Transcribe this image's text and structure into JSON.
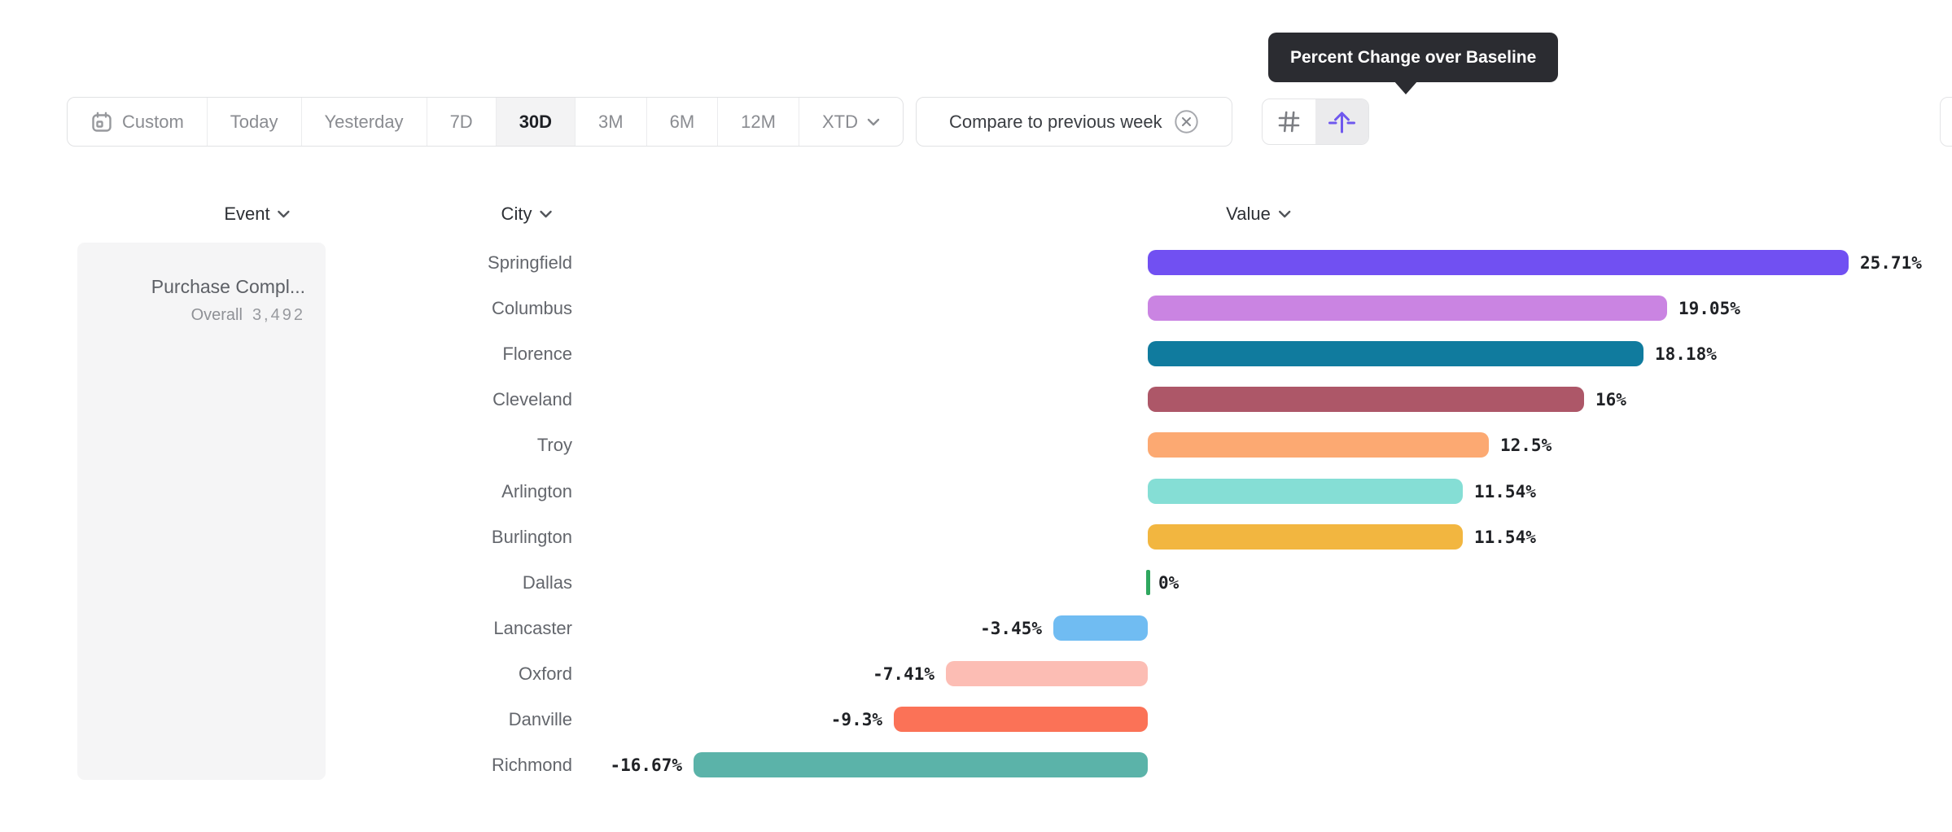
{
  "toolbar": {
    "date_ranges": [
      "Custom",
      "Today",
      "Yesterday",
      "7D",
      "30D",
      "3M",
      "6M",
      "12M",
      "XTD"
    ],
    "selected_range": "30D",
    "compare_label": "Compare to previous week"
  },
  "tooltip": {
    "text": "Percent Change over Baseline"
  },
  "columns": {
    "event": "Event",
    "city": "City",
    "value": "Value"
  },
  "event_cell": {
    "title": "Purchase Compl...",
    "overall_label": "Overall",
    "overall_value": "3,492"
  },
  "chart_data": {
    "type": "bar",
    "orientation": "horizontal",
    "title": "Percent Change over Baseline",
    "unit": "%",
    "baseline": 0,
    "xlim": [
      -16.67,
      25.71
    ],
    "grid": false,
    "legend": false,
    "categories": [
      "Springfield",
      "Columbus",
      "Florence",
      "Cleveland",
      "Troy",
      "Arlington",
      "Burlington",
      "Dallas",
      "Lancaster",
      "Oxford",
      "Danville",
      "Richmond"
    ],
    "values": [
      25.71,
      19.05,
      18.18,
      16,
      12.5,
      11.54,
      11.54,
      0,
      -3.45,
      -7.41,
      -9.3,
      -16.67
    ],
    "value_labels": [
      "25.71%",
      "19.05%",
      "18.18%",
      "16%",
      "12.5%",
      "11.54%",
      "11.54%",
      "0%",
      "-3.45%",
      "-7.41%",
      "-9.3%",
      "-16.67%"
    ],
    "bar_colors": [
      "#7150f2",
      "#ca84e2",
      "#107b9e",
      "#ad5768",
      "#fca972",
      "#85ded5",
      "#f2b640",
      "#2fa75f",
      "#70bcf2",
      "#fcbdb4",
      "#fb7257",
      "#5bb3a9"
    ]
  },
  "colors": {
    "tooltip_bg": "#2b2c31",
    "selected_segment_bg": "#f3f3f4",
    "active_icon": "#6f58ee",
    "inactive_icon": "#7c7e83",
    "event_panel_bg": "#f5f5f6"
  }
}
